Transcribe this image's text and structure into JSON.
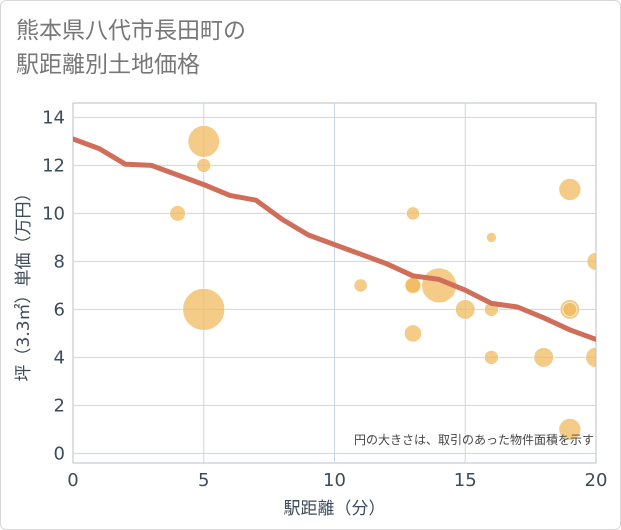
{
  "title_line1": "熊本県八代市長田町の",
  "title_line2": "駅距離別土地価格",
  "chart_data": {
    "type": "scatter",
    "title": "熊本県八代市長田町の駅距離別土地価格",
    "xlabel": "駅距離（分）",
    "ylabel": "坪（3.3㎡）単価（万円）",
    "xlim": [
      0,
      20
    ],
    "ylim": [
      -0.4,
      14.6
    ],
    "xticks": [
      0,
      5,
      10,
      15,
      20
    ],
    "yticks": [
      0,
      2,
      4,
      6,
      8,
      10,
      12,
      14
    ],
    "grid": true,
    "note": "円の大きさは、取引のあった物件面積を示す",
    "points": [
      {
        "x": 4,
        "y": 10,
        "size": 1.2
      },
      {
        "x": 5,
        "y": 13,
        "size": 3.2
      },
      {
        "x": 5,
        "y": 12,
        "size": 1.0
      },
      {
        "x": 5,
        "y": 6,
        "size": 4.5
      },
      {
        "x": 11,
        "y": 7,
        "size": 0.9
      },
      {
        "x": 13,
        "y": 10,
        "size": 0.9
      },
      {
        "x": 13,
        "y": 7,
        "size": 1.4
      },
      {
        "x": 13,
        "y": 7,
        "size": 1.2
      },
      {
        "x": 13,
        "y": 5,
        "size": 1.4
      },
      {
        "x": 14,
        "y": 7,
        "size": 3.6
      },
      {
        "x": 15,
        "y": 6,
        "size": 1.7
      },
      {
        "x": 16,
        "y": 9,
        "size": 0.5
      },
      {
        "x": 16,
        "y": 6,
        "size": 1.0
      },
      {
        "x": 16,
        "y": 4,
        "size": 1.0
      },
      {
        "x": 18,
        "y": 4,
        "size": 1.7
      },
      {
        "x": 19,
        "y": 11,
        "size": 2.0
      },
      {
        "x": 19,
        "y": 6,
        "size": 1.7
      },
      {
        "x": 19,
        "y": 6,
        "size": 1.0
      },
      {
        "x": 19,
        "y": 1,
        "size": 2.0
      },
      {
        "x": 20,
        "y": 8,
        "size": 1.5
      },
      {
        "x": 20,
        "y": 4,
        "size": 1.8
      }
    ],
    "trend": {
      "name": "trend",
      "x": [
        0,
        1,
        2,
        3,
        4,
        5,
        6,
        7,
        8,
        9,
        10,
        11,
        12,
        13,
        14,
        15,
        16,
        17,
        18,
        19,
        20
      ],
      "y": [
        13.1,
        12.7,
        12.05,
        12.0,
        11.6,
        11.2,
        10.75,
        10.55,
        9.75,
        9.1,
        8.7,
        8.3,
        7.9,
        7.4,
        7.25,
        6.8,
        6.25,
        6.1,
        5.65,
        5.15,
        4.75
      ]
    },
    "colors": {
      "bubble": "#f0b85a",
      "trend": "#d06e5a",
      "grid": "#c9d6e3",
      "axis": "#3d4b5a"
    }
  }
}
